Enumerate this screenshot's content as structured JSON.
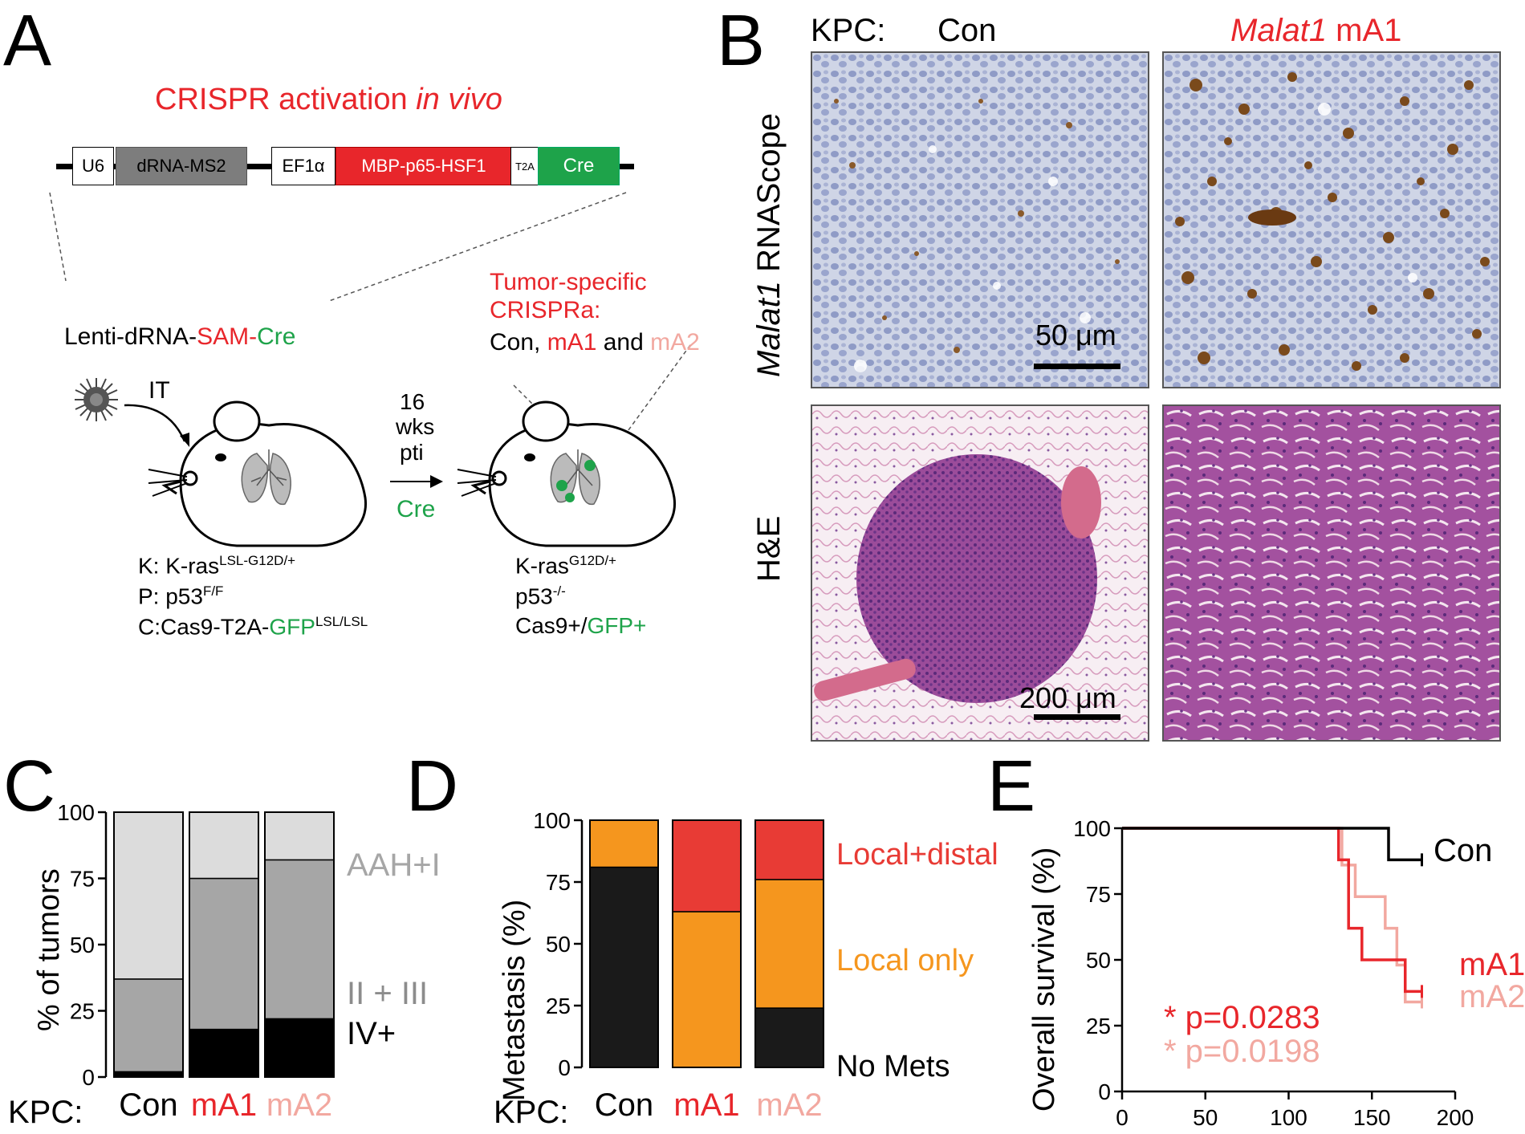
{
  "panel_labels": {
    "a": "A",
    "b": "B",
    "c": "C",
    "d": "D",
    "e": "E"
  },
  "colors": {
    "red": "#e8262b",
    "pink": "#f2a8a0",
    "green": "#1ea34a",
    "orange": "#f5961e",
    "black": "#1a1a1a",
    "grey_light": "#dcdcdc",
    "grey_mid": "#a6a6a6",
    "dark_red": "#e83b35"
  },
  "panel_a": {
    "title": "CRISPR activation ",
    "title_italic": "in vivo",
    "construct": [
      "U6",
      "dRNA-MS2",
      "EF1α",
      "MBP-p65-HSF1",
      "T2A",
      "Cre"
    ],
    "virus_label_1": "Lenti-dRNA-",
    "virus_label_2": "SAM-",
    "virus_label_3": "Cre",
    "route": "IT",
    "timeline": [
      "16",
      "wks",
      "pti"
    ],
    "timeline_cre": "Cre",
    "crispra_title_1": "Tumor-specific",
    "crispra_title_2": "CRISPRa:",
    "crispra_groups_1": "Con, ",
    "crispra_groups_2": "mA1",
    "crispra_groups_3": " and ",
    "crispra_groups_4": "mA2",
    "genotype_left": {
      "k_prefix": "K: K-ras",
      "k_sup": "LSL-G12D/+",
      "p_prefix": "P: p53",
      "p_sup": "F/F",
      "c_prefix": "C:Cas9-T2A-",
      "c_green": "GFP",
      "c_sup": "LSL/LSL"
    },
    "genotype_right": {
      "k_prefix": "K-ras",
      "k_sup": "G12D/+",
      "p_prefix": "p53",
      "p_sup": "-/-",
      "c_prefix": "Cas9+/",
      "c_green": "GFP+"
    }
  },
  "panel_b": {
    "header_prefix": "KPC:",
    "col_con": "Con",
    "col_ma1_italic": "Malat1",
    "col_ma1_rest": " mA1",
    "row1_italic": "Malat1",
    "row1_rest": " RNAScope",
    "row2": "H&E",
    "scale1": "50 μm",
    "scale2": "200 μm"
  },
  "panel_c": {
    "y_axis_label": "% of tumors",
    "x_prefix": "KPC:",
    "legend": [
      "AAH+I",
      "II + III",
      "IV+"
    ]
  },
  "panel_d": {
    "y_axis_label": "Metastasis (%)",
    "x_prefix": "KPC:",
    "legend": [
      "Local+distal",
      "Local only",
      "No Mets"
    ]
  },
  "panel_e": {
    "y_axis_label": "Overall survival (%)",
    "series_labels": [
      "Con",
      "mA1",
      "mA2"
    ],
    "pvalues": [
      "* p=0.0283",
      "* p=0.0198"
    ]
  },
  "chart_data": [
    {
      "type": "bar",
      "stacked": true,
      "panel": "C",
      "categories": [
        "Con",
        "mA1",
        "mA2"
      ],
      "category_colors": [
        "#000000",
        "#e8262b",
        "#f2a8a0"
      ],
      "ylabel": "% of tumors",
      "ylim": [
        0,
        100
      ],
      "yticks": [
        0,
        25,
        50,
        75,
        100
      ],
      "series": [
        {
          "name": "IV+",
          "values": [
            2,
            18,
            22
          ],
          "color": "#000000"
        },
        {
          "name": "II + III",
          "values": [
            35,
            57,
            60
          ],
          "color": "#a6a6a6"
        },
        {
          "name": "AAH+I",
          "values": [
            63,
            25,
            18
          ],
          "color": "#dcdcdc"
        }
      ]
    },
    {
      "type": "bar",
      "stacked": true,
      "panel": "D",
      "categories": [
        "Con",
        "mA1",
        "mA2"
      ],
      "category_colors": [
        "#000000",
        "#e8262b",
        "#f2a8a0"
      ],
      "ylabel": "Metastasis (%)",
      "ylim": [
        0,
        100
      ],
      "yticks": [
        0,
        25,
        50,
        75,
        100
      ],
      "series": [
        {
          "name": "No Mets",
          "values": [
            81,
            0,
            24
          ],
          "color": "#1a1a1a"
        },
        {
          "name": "Local only",
          "values": [
            19,
            63,
            52
          ],
          "color": "#f5961e"
        },
        {
          "name": "Local+distal",
          "values": [
            0,
            37,
            24
          ],
          "color": "#e83b35"
        }
      ]
    },
    {
      "type": "line",
      "step": true,
      "panel": "E",
      "ylabel": "Overall survival (%)",
      "xlim": [
        0,
        200
      ],
      "ylim": [
        0,
        100
      ],
      "xticks": [
        0,
        50,
        100,
        150,
        200
      ],
      "yticks": [
        0,
        25,
        50,
        75,
        100
      ],
      "series": [
        {
          "name": "Con",
          "color": "#000000",
          "x": [
            0,
            160,
            160,
            180
          ],
          "y": [
            100,
            100,
            88,
            88
          ]
        },
        {
          "name": "mA1",
          "color": "#e8262b",
          "x": [
            0,
            130,
            130,
            136,
            136,
            144,
            144,
            160,
            160,
            170,
            170,
            180
          ],
          "y": [
            100,
            100,
            88,
            88,
            62,
            62,
            50,
            50,
            50,
            50,
            38,
            38
          ]
        },
        {
          "name": "mA2",
          "color": "#f2a8a0",
          "x": [
            0,
            132,
            132,
            140,
            140,
            158,
            158,
            165,
            165,
            170,
            170,
            180
          ],
          "y": [
            100,
            100,
            86,
            86,
            74,
            74,
            62,
            62,
            48,
            48,
            34,
            34
          ]
        }
      ]
    }
  ]
}
